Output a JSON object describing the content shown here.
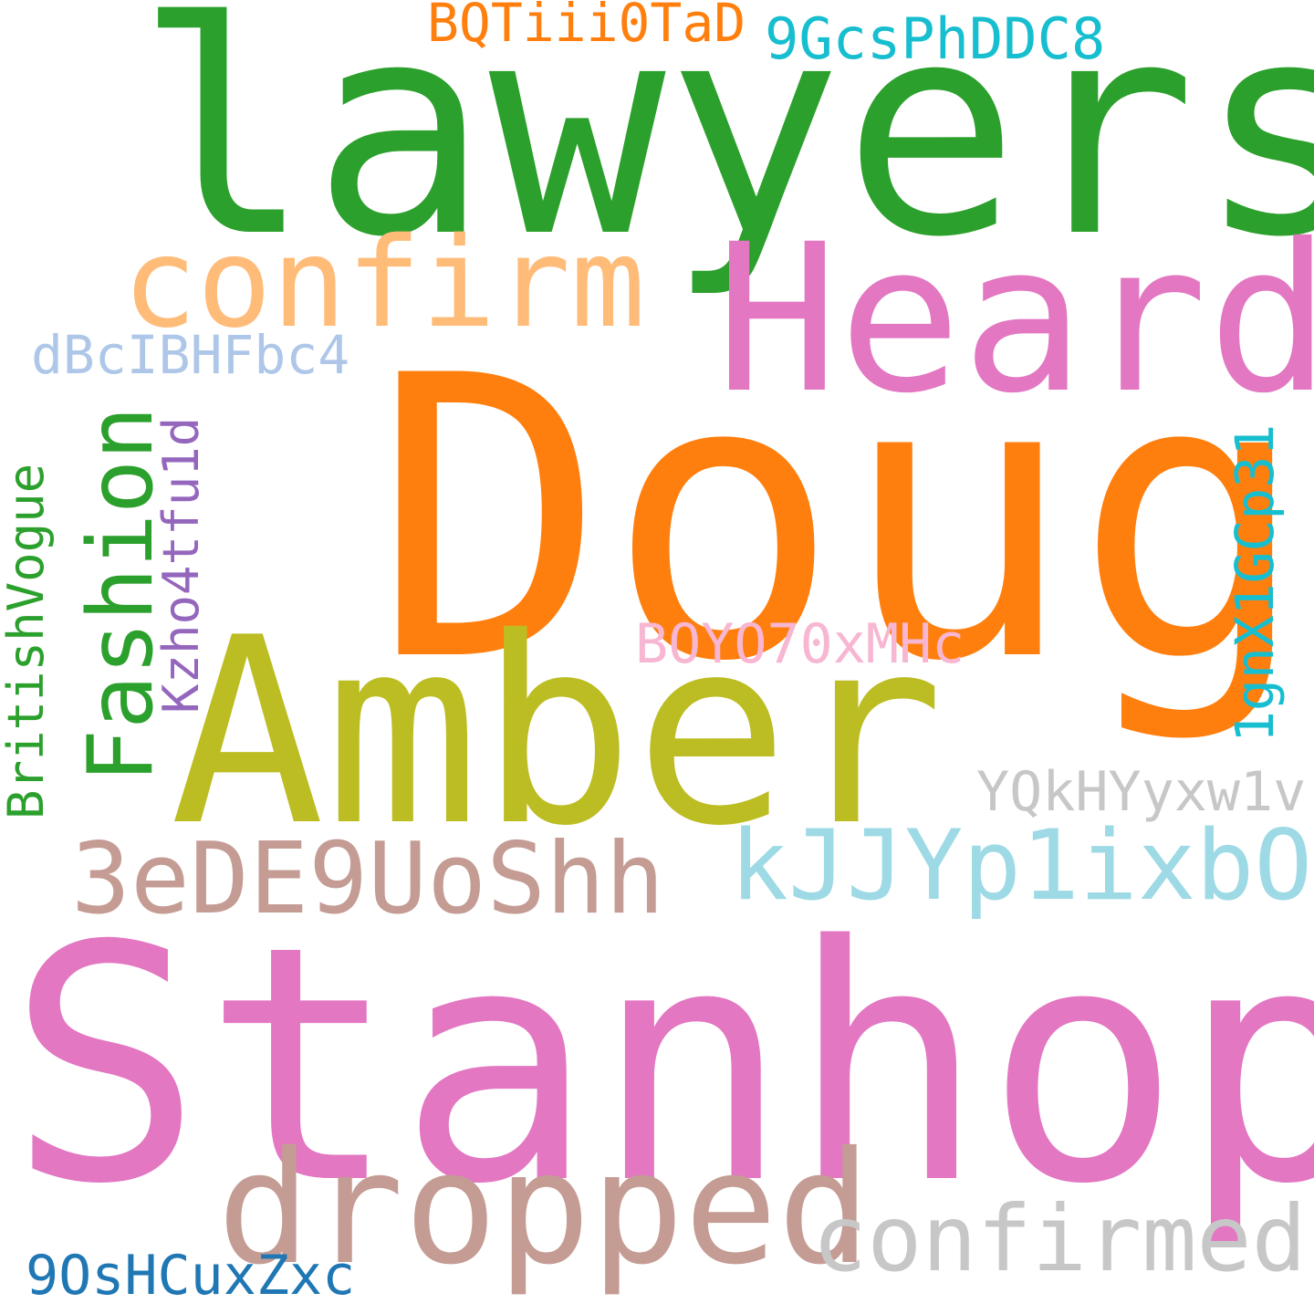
{
  "words": [
    {
      "key": "lawyers",
      "text": "lawyers",
      "color": "#2ca02c",
      "orientation": "horizontal"
    },
    {
      "key": "doug",
      "text": "Doug",
      "color": "#ff7f0e",
      "orientation": "horizontal"
    },
    {
      "key": "stanhope",
      "text": "Stanhope",
      "color": "#e377c2",
      "orientation": "horizontal"
    },
    {
      "key": "amber",
      "text": "Amber",
      "color": "#bcbd22",
      "orientation": "horizontal"
    },
    {
      "key": "heard",
      "text": "Heard",
      "color": "#e377c2",
      "orientation": "horizontal"
    },
    {
      "key": "confirm",
      "text": "confirm",
      "color": "#ffbb78",
      "orientation": "horizontal"
    },
    {
      "key": "dropped",
      "text": "dropped",
      "color": "#c49c94",
      "orientation": "horizontal"
    },
    {
      "key": "3eDE9UoShh",
      "text": "3eDE9UoShh",
      "color": "#c49c94",
      "orientation": "horizontal"
    },
    {
      "key": "kJJYp1ixbO",
      "text": "kJJYp1ixbO",
      "color": "#9edae5",
      "orientation": "horizontal"
    },
    {
      "key": "confirmed",
      "text": "confirmed",
      "color": "#c7c7c7",
      "orientation": "horizontal"
    },
    {
      "key": "Fashion",
      "text": "Fashion",
      "color": "#2ca02c",
      "orientation": "vertical"
    },
    {
      "key": "BQTiii0TaD",
      "text": "BQTiii0TaD",
      "color": "#ff7f0e",
      "orientation": "horizontal"
    },
    {
      "key": "9GcsPhDDC8",
      "text": "9GcsPhDDC8",
      "color": "#17becf",
      "orientation": "horizontal"
    },
    {
      "key": "dBcIBHFbc4",
      "text": "dBcIBHFbc4",
      "color": "#aec7e8",
      "orientation": "horizontal"
    },
    {
      "key": "Kzho4tfu1d",
      "text": "Kzho4tfu1d",
      "color": "#9467bd",
      "orientation": "vertical"
    },
    {
      "key": "BritishVogue",
      "text": "BritishVogue",
      "color": "#2ca02c",
      "orientation": "vertical"
    },
    {
      "key": "1gnX1GCp31",
      "text": "1gnX1GCp31",
      "color": "#17becf",
      "orientation": "vertical"
    },
    {
      "key": "BOYO70xMHc",
      "text": "BOYO70xMHc",
      "color": "#f7b6d2",
      "orientation": "horizontal"
    },
    {
      "key": "YQkHYyxw1v",
      "text": "YQkHYyxw1v",
      "color": "#c7c7c7",
      "orientation": "horizontal"
    },
    {
      "key": "9OsHCuxZxc",
      "text": "9OsHCuxZxc",
      "color": "#1f77b4",
      "orientation": "horizontal"
    }
  ]
}
